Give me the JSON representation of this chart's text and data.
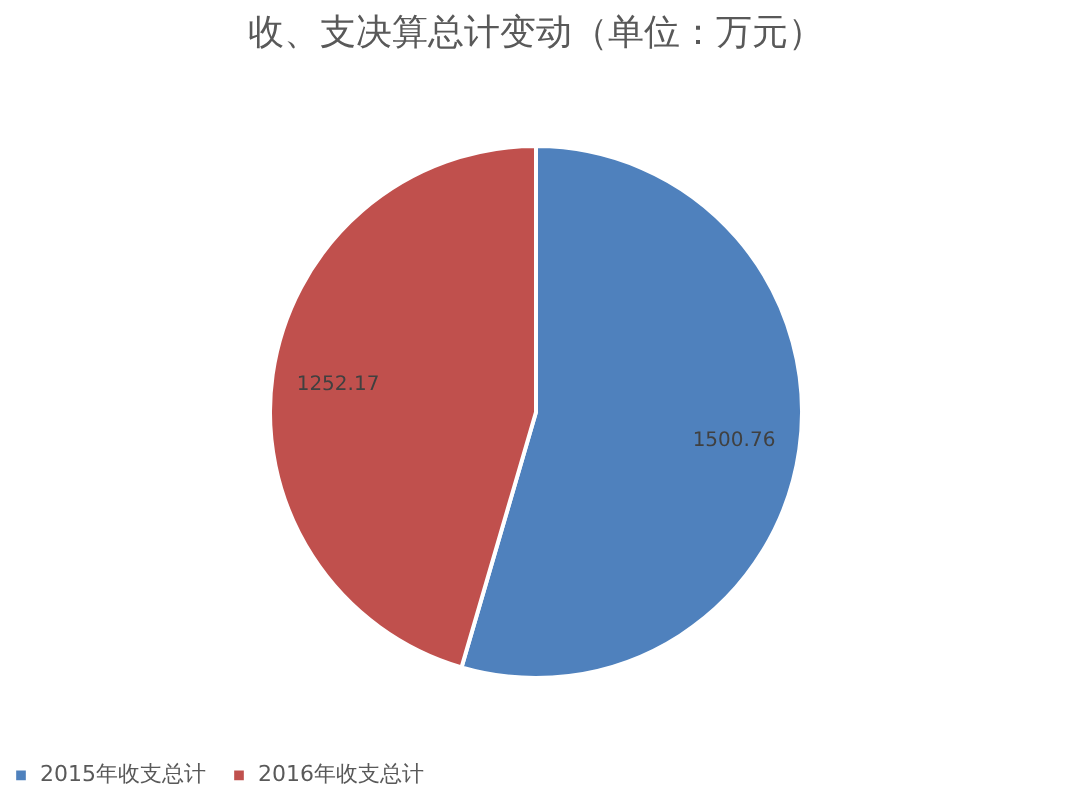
{
  "chart_data": {
    "type": "pie",
    "title": "收、支决算总计变动（单位：万元）",
    "categories": [
      "2015年收支总计",
      "2016年收支总计"
    ],
    "values": [
      1500.76,
      1252.17
    ],
    "colors": [
      "#4f81bd",
      "#c0504d"
    ],
    "data_labels": true,
    "legend": "bottom"
  }
}
